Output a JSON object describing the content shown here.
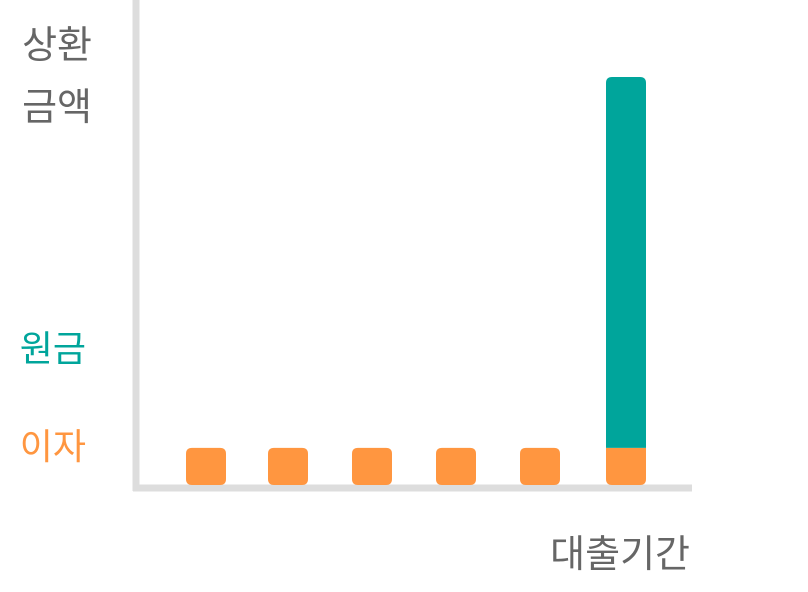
{
  "chart_data": {
    "type": "bar",
    "stacked": true,
    "ylabel_lines": [
      "상환",
      "금액"
    ],
    "xlabel": "대출기간",
    "categories": [
      "",
      "",
      "",
      "",
      "",
      ""
    ],
    "series": [
      {
        "name": "이자",
        "color": "#FF9640",
        "values": [
          1,
          1,
          1,
          1,
          1,
          1
        ]
      },
      {
        "name": "원금",
        "color": "#00A59B",
        "values": [
          0,
          0,
          0,
          0,
          0,
          10
        ]
      }
    ],
    "ylim": [
      0,
      12
    ],
    "grid": false,
    "legend_placement": "left"
  },
  "colors": {
    "axis": "#DDDDDD",
    "label_text": "#666666"
  }
}
